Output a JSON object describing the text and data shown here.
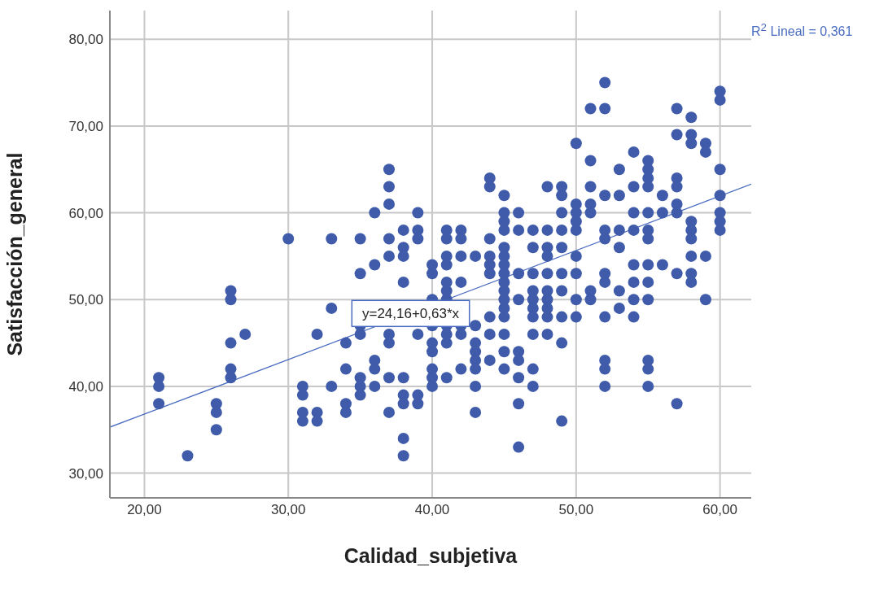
{
  "chart_data": {
    "type": "scatter",
    "xlabel": "Calidad_subjetiva",
    "ylabel": "Satisfacción_general",
    "xlim": [
      17.6,
      62.17
    ],
    "ylim": [
      27.15,
      83.3
    ],
    "xticks": [
      {
        "value": 20,
        "label": "20,00"
      },
      {
        "value": 30,
        "label": "30,00"
      },
      {
        "value": 40,
        "label": "40,00"
      },
      {
        "value": 50,
        "label": "50,00"
      },
      {
        "value": 60,
        "label": "60,00"
      }
    ],
    "yticks": [
      {
        "value": 30,
        "label": "30,00"
      },
      {
        "value": 40,
        "label": "40,00"
      },
      {
        "value": 50,
        "label": "50,00"
      },
      {
        "value": 60,
        "label": "60,00"
      },
      {
        "value": 70,
        "label": "70,00"
      },
      {
        "value": 80,
        "label": "80,00"
      }
    ],
    "grid": true,
    "marker": "circle",
    "annotations": [
      {
        "text": "y=24,16+0,63*x",
        "x": 38.5,
        "y": 48.4
      },
      "R$^{2}$ Lineal = 0,361"
    ],
    "series": [
      {
        "type": "scatter",
        "color": "#3f5ba9",
        "x": [
          21,
          21,
          21,
          23,
          25,
          25,
          25,
          26,
          26,
          26,
          26,
          26,
          27,
          30,
          31,
          31,
          31,
          31,
          32,
          32,
          32,
          33,
          33,
          33,
          34,
          34,
          34,
          34,
          35,
          35,
          35,
          35,
          35,
          35,
          35,
          36,
          36,
          36,
          36,
          36,
          37,
          37,
          37,
          37,
          37,
          37,
          37,
          37,
          37,
          38,
          38,
          38,
          38,
          38,
          38,
          38,
          38,
          38,
          39,
          39,
          39,
          39,
          39,
          39,
          40,
          40,
          40,
          40,
          40,
          40,
          40,
          40,
          40,
          41,
          41,
          41,
          41,
          41,
          41,
          41,
          41,
          41,
          41,
          41,
          42,
          42,
          42,
          42,
          42,
          42,
          42,
          43,
          43,
          43,
          43,
          43,
          43,
          43,
          43,
          44,
          44,
          44,
          44,
          44,
          44,
          44,
          44,
          44,
          45,
          45,
          45,
          45,
          45,
          45,
          45,
          45,
          45,
          45,
          45,
          45,
          45,
          45,
          45,
          45,
          46,
          46,
          46,
          46,
          46,
          46,
          46,
          46,
          46,
          47,
          47,
          47,
          47,
          47,
          47,
          47,
          47,
          47,
          47,
          48,
          48,
          48,
          48,
          48,
          48,
          48,
          48,
          48,
          48,
          49,
          49,
          49,
          49,
          49,
          49,
          49,
          49,
          49,
          49,
          50,
          50,
          50,
          50,
          50,
          50,
          50,
          50,
          50,
          51,
          51,
          51,
          51,
          51,
          51,
          51,
          52,
          52,
          52,
          52,
          52,
          52,
          52,
          52,
          52,
          52,
          52,
          53,
          53,
          53,
          53,
          53,
          53,
          54,
          54,
          54,
          54,
          54,
          54,
          54,
          54,
          55,
          55,
          55,
          55,
          55,
          55,
          55,
          55,
          55,
          55,
          55,
          55,
          55,
          56,
          56,
          56,
          57,
          57,
          57,
          57,
          57,
          57,
          57,
          57,
          58,
          58,
          58,
          58,
          58,
          58,
          58,
          58,
          58,
          59,
          59,
          59,
          59,
          60,
          60,
          60,
          60,
          60,
          60,
          60
        ],
        "values": [
          41,
          40,
          38,
          32,
          38,
          37,
          35,
          51,
          50,
          45,
          42,
          41,
          46,
          57,
          40,
          39,
          37,
          36,
          46,
          37,
          36,
          57,
          49,
          40,
          45,
          42,
          38,
          37,
          57,
          53,
          47,
          46,
          41,
          40,
          39,
          60,
          54,
          43,
          42,
          40,
          65,
          63,
          61,
          57,
          55,
          46,
          45,
          41,
          37,
          58,
          56,
          55,
          52,
          41,
          39,
          38,
          34,
          32,
          60,
          58,
          57,
          46,
          39,
          38,
          54,
          53,
          50,
          47,
          45,
          44,
          42,
          41,
          40,
          58,
          57,
          55,
          54,
          52,
          51,
          50,
          47,
          46,
          45,
          41,
          58,
          57,
          55,
          52,
          47,
          46,
          42,
          55,
          47,
          45,
          44,
          43,
          42,
          40,
          37,
          64,
          63,
          57,
          55,
          54,
          53,
          48,
          46,
          43,
          62,
          60,
          59,
          58,
          56,
          55,
          54,
          53,
          52,
          51,
          50,
          49,
          48,
          46,
          44,
          42,
          60,
          58,
          53,
          50,
          44,
          43,
          41,
          38,
          33,
          58,
          56,
          53,
          51,
          50,
          49,
          48,
          46,
          42,
          40,
          63,
          58,
          56,
          55,
          53,
          51,
          50,
          49,
          48,
          46,
          63,
          62,
          60,
          58,
          56,
          53,
          51,
          48,
          45,
          36,
          68,
          61,
          60,
          59,
          58,
          55,
          53,
          50,
          48,
          72,
          66,
          63,
          61,
          60,
          51,
          50,
          75,
          72,
          62,
          58,
          57,
          53,
          52,
          48,
          43,
          42,
          40,
          65,
          62,
          58,
          56,
          51,
          49,
          67,
          63,
          60,
          58,
          54,
          52,
          50,
          48,
          66,
          65,
          64,
          63,
          60,
          58,
          57,
          54,
          52,
          50,
          43,
          42,
          40,
          62,
          60,
          54,
          72,
          69,
          64,
          63,
          61,
          60,
          53,
          38,
          71,
          69,
          68,
          59,
          58,
          57,
          55,
          53,
          52,
          68,
          67,
          55,
          50,
          74,
          73,
          65,
          62,
          60,
          59,
          58
        ]
      },
      {
        "type": "line",
        "color": "#4a6cc0",
        "marker": "none",
        "x": [
          17.6,
          62.17
        ],
        "values": [
          35.3,
          63.3
        ]
      }
    ]
  }
}
